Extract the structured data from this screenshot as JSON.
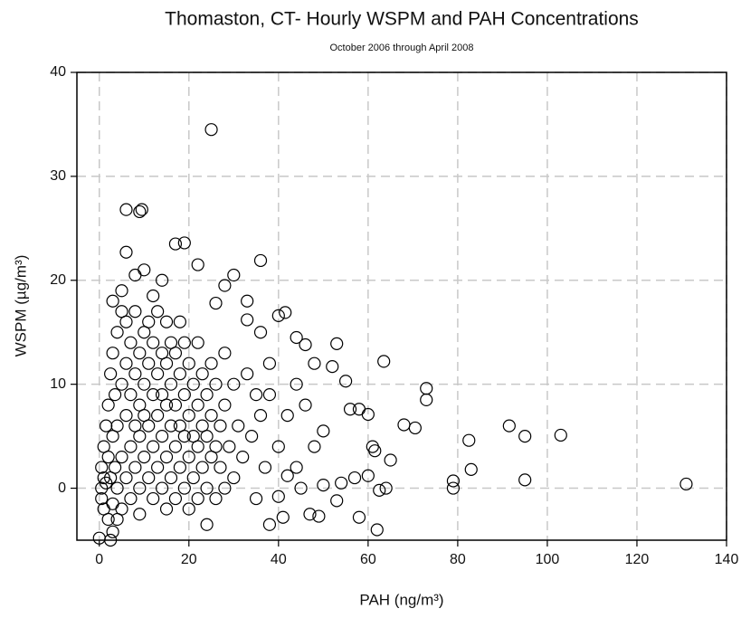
{
  "chart_data": {
    "type": "scatter",
    "title": "Thomaston, CT- Hourly WSPM and PAH Concentrations",
    "subtitle": "October 2006 through April 2008",
    "x_label": "PAH (ng/m³)",
    "y_label": "WSPM (µg/m³)",
    "xlim": [
      -5,
      140
    ],
    "ylim": [
      -5,
      40
    ],
    "xticks": [
      0,
      20,
      40,
      60,
      80,
      100,
      120,
      140
    ],
    "yticks": [
      0,
      10,
      20,
      30,
      40
    ],
    "grid": true,
    "color": "#000000",
    "x": [
      25,
      6,
      9,
      9.5,
      6,
      17,
      19,
      36,
      63.5,
      73,
      73,
      68,
      70.5,
      82.5,
      91.5,
      95,
      103,
      131,
      95,
      83,
      79,
      79,
      65,
      62,
      58,
      62.5,
      60,
      38,
      41,
      47,
      49,
      24,
      0,
      2.5,
      3,
      40,
      41.5,
      44,
      46,
      53,
      52,
      55,
      56,
      58,
      60,
      61,
      61.5,
      64,
      57,
      54,
      53,
      50,
      45,
      40,
      42,
      48,
      50,
      46,
      44,
      48,
      36,
      33,
      30,
      28,
      26,
      22,
      14,
      12,
      10,
      8,
      5,
      3,
      33,
      38,
      35,
      0.5,
      0.5,
      0.5,
      1,
      1,
      1,
      1.5,
      1.5,
      2,
      2,
      2,
      2.5,
      2.5,
      3,
      3,
      3,
      3.5,
      3.5,
      4,
      4,
      4,
      4,
      5,
      5,
      5,
      5,
      6,
      6,
      6,
      6,
      7,
      7,
      7,
      7,
      8,
      8,
      8,
      8,
      9,
      9,
      9,
      9,
      9,
      10,
      10,
      10,
      10,
      11,
      11,
      11,
      11,
      12,
      12,
      12,
      12,
      13,
      13,
      13,
      13,
      14,
      14,
      14,
      14,
      15,
      15,
      15,
      15,
      15,
      16,
      16,
      16,
      16,
      17,
      17,
      17,
      17,
      18,
      18,
      18,
      18,
      19,
      19,
      19,
      19,
      20,
      20,
      20,
      20,
      21,
      21,
      21,
      22,
      22,
      22,
      22,
      23,
      23,
      23,
      24,
      24,
      24,
      25,
      25,
      25,
      26,
      26,
      26,
      27,
      27,
      28,
      28,
      28,
      29,
      30,
      30,
      31,
      32,
      33,
      34,
      35,
      36,
      37,
      38,
      40,
      42,
      44
    ],
    "values": [
      34.5,
      26.8,
      26.6,
      26.8,
      22.7,
      23.5,
      23.6,
      21.9,
      12.2,
      9.6,
      8.5,
      6.1,
      5.8,
      4.6,
      6,
      5,
      5.1,
      0.4,
      0.8,
      1.8,
      0.7,
      0,
      2.7,
      -4,
      -2.8,
      -0.2,
      1.2,
      -3.5,
      -2.8,
      -2.5,
      -2.7,
      -3.5,
      -4.8,
      -5,
      -4.2,
      16.6,
      16.9,
      14.5,
      13.8,
      13.9,
      11.7,
      10.3,
      7.6,
      7.6,
      7.1,
      4,
      3.6,
      0,
      1,
      0.5,
      -1.2,
      0.3,
      0,
      -0.8,
      1.2,
      4,
      5.5,
      8,
      10,
      12,
      15,
      18,
      20.5,
      19.5,
      17.8,
      21.5,
      20,
      18.5,
      21,
      20.5,
      19,
      18,
      16.2,
      12,
      9,
      0,
      2,
      -1,
      1,
      4,
      -2,
      6,
      0.5,
      3,
      8,
      -3,
      1,
      11,
      5,
      13,
      -1.5,
      2,
      9,
      0,
      6,
      15,
      -3,
      3,
      10,
      17,
      -2,
      1,
      7,
      12,
      16,
      4,
      9,
      14,
      -1,
      2,
      6,
      11,
      17,
      0,
      5,
      8,
      13,
      -2.5,
      3,
      7,
      10,
      15,
      1,
      6,
      12,
      16,
      -1,
      4,
      9,
      14,
      2,
      7,
      11,
      17,
      0,
      5,
      9,
      13,
      -2,
      3,
      8,
      12,
      16,
      1,
      6,
      10,
      14,
      -1,
      4,
      8,
      13,
      2,
      6,
      11,
      16,
      0,
      5,
      9,
      14,
      -2,
      3,
      7,
      12,
      1,
      5,
      10,
      -1,
      4,
      8,
      14,
      2,
      6,
      11,
      0,
      5,
      9,
      3,
      7,
      12,
      -1,
      4,
      10,
      2,
      6,
      0,
      8,
      13,
      4,
      1,
      10,
      6,
      3,
      11,
      5,
      -1,
      7,
      2,
      9,
      4,
      7,
      2
    ]
  }
}
